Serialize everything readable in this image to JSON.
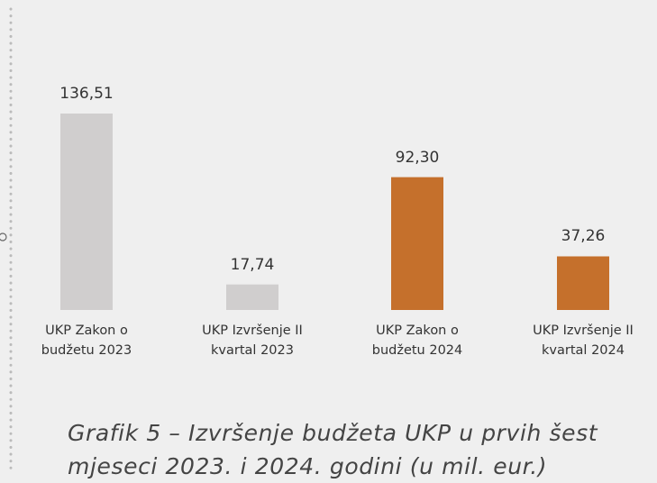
{
  "chart_data": {
    "type": "bar",
    "categories": [
      "UKP Zakon o budžetu 2023",
      "UKP Izvršenje II kvartal 2023",
      "UKP Zakon o budžetu 2024",
      "UKP Izvršenje II kvartal 2024"
    ],
    "values": [
      136.51,
      17.74,
      92.3,
      37.26
    ],
    "value_labels": [
      "136,51",
      "17,74",
      "92,30",
      "37,26"
    ],
    "colors": [
      "#d0cece",
      "#d0cece",
      "#c5702c",
      "#c5702c"
    ],
    "caption": "Grafik 5 – Izvršenje budžeta UKP u prvih šest mjeseci 2023. i 2024. godini (u mil. eur.)"
  }
}
